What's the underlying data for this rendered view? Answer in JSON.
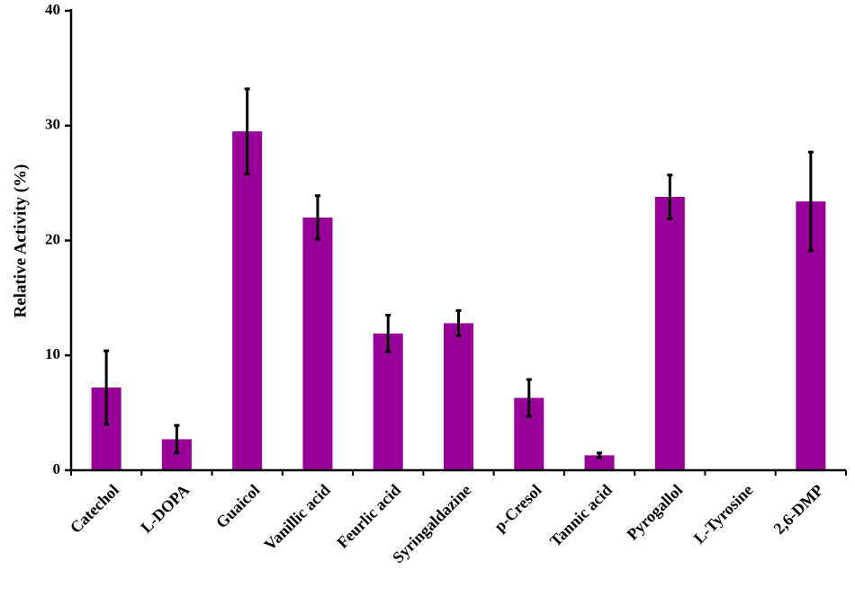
{
  "chart_data": {
    "type": "bar",
    "title": "",
    "xlabel": "",
    "ylabel": "Relative Activity (%)",
    "ylim": [
      0,
      40
    ],
    "yticks": [
      0,
      10,
      20,
      30,
      40
    ],
    "grid": false,
    "legend": "none",
    "bar_color": "#990099",
    "error_bar_color": "#000000",
    "categories": [
      "Catechol",
      "L-DOPA",
      "Guaicol",
      "Vanillic acid",
      "Feurlic acid",
      "Syringaldazine",
      "p-Cresol",
      "Tannic acid",
      "Pyrogallol",
      "L-Tyrosine",
      "2,6-DMP"
    ],
    "values": [
      7.2,
      2.7,
      29.5,
      22.0,
      11.9,
      12.8,
      6.3,
      1.3,
      23.8,
      0,
      23.4
    ],
    "errors": [
      3.2,
      1.2,
      3.7,
      1.9,
      1.6,
      1.1,
      1.6,
      0.2,
      1.9,
      0,
      4.3
    ]
  }
}
